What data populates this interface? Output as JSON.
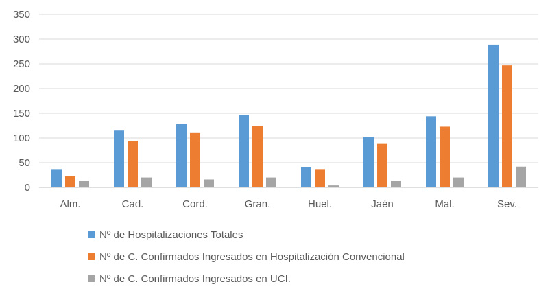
{
  "chart_data": {
    "type": "bar",
    "categories": [
      "Alm.",
      "Cad.",
      "Cord.",
      "Gran.",
      "Huel.",
      "Jaén",
      "Mal.",
      "Sev."
    ],
    "series": [
      {
        "name": "Nº de Hospitalizaciones Totales",
        "color": "#5b9bd5",
        "values": [
          37,
          115,
          128,
          146,
          41,
          102,
          144,
          289
        ]
      },
      {
        "name": "Nº de C. Confirmados Ingresados en Hospitalización Convencional",
        "color": "#ed7d31",
        "values": [
          23,
          94,
          110,
          124,
          37,
          88,
          123,
          247
        ]
      },
      {
        "name": "Nº de C. Confirmados Ingresados en UCI.",
        "color": "#a5a5a5",
        "values": [
          13,
          20,
          16,
          20,
          4,
          13,
          20,
          42
        ]
      }
    ],
    "ylim": [
      0,
      350
    ],
    "yticks": [
      0,
      50,
      100,
      150,
      200,
      250,
      300,
      350
    ],
    "grid": true,
    "legend_position": "bottom-left"
  }
}
